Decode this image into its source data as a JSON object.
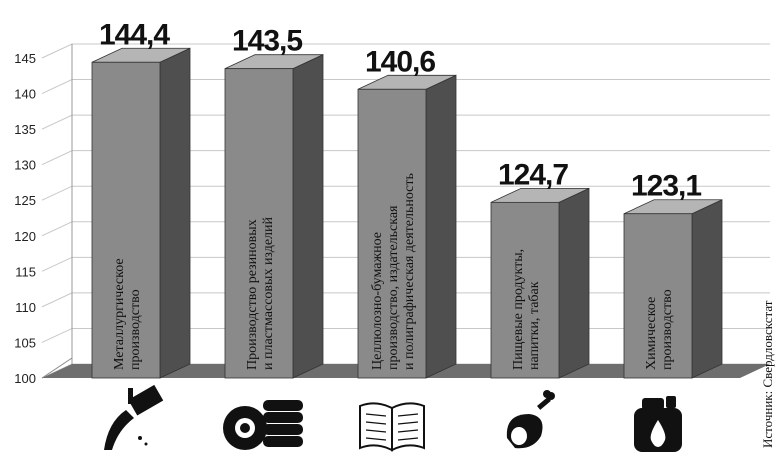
{
  "chart_data": {
    "type": "bar",
    "categories": [
      "Металлургическое производство",
      "Производство резиновых и пластмассовых изделий",
      "Целлюлозно-бумажное производство, издательская и полиграфическая деятельность",
      "Пищевые продукты, напитки, табак",
      "Химическое производство"
    ],
    "category_lines": [
      [
        "Металлургическое",
        "производство"
      ],
      [
        "Производство резиновых",
        "и пластмассовых изделий"
      ],
      [
        "Целлюлозно-бумажное",
        "производство, издательская",
        "и полиграфическая деятельность"
      ],
      [
        "Пищевые продукты,",
        "напитки, табак"
      ],
      [
        "Химическое",
        "производство"
      ]
    ],
    "values": [
      144.4,
      143.5,
      140.6,
      124.7,
      123.1
    ],
    "value_labels": [
      "144,4",
      "143,5",
      "140,6",
      "124,7",
      "123,1"
    ],
    "icons": [
      "metal-ladle-icon",
      "tires-icon",
      "open-book-icon",
      "ham-leg-icon",
      "chemical-canister-icon"
    ],
    "ylim": [
      100,
      145
    ],
    "yticks": [
      100,
      105,
      110,
      115,
      120,
      125,
      130,
      135,
      140,
      145
    ],
    "grid": true,
    "source": "Источник: Свердловскстат"
  },
  "colors": {
    "bar_front": "#8a8a8a",
    "bar_side": "#4f4f4f",
    "bar_top": "#b5b5b5",
    "floor": "#6e6e6e",
    "grid": "#c8c8c8"
  }
}
